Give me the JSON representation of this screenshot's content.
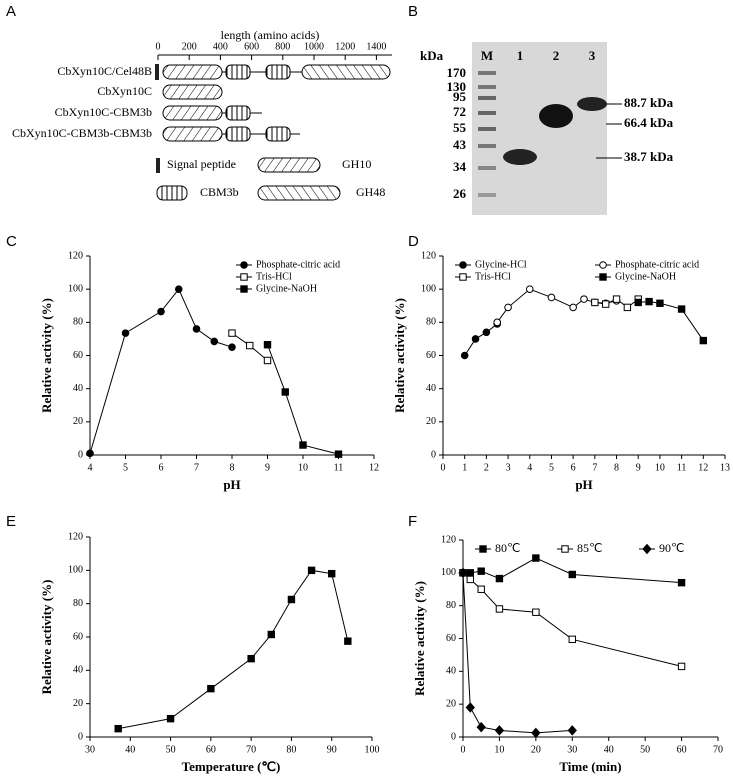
{
  "diagram": {
    "panel_label": "A",
    "axis_title": "length (amino acids)",
    "xlim": [
      0,
      1500
    ],
    "xticks": [
      0,
      200,
      400,
      600,
      800,
      1000,
      1200,
      1400
    ],
    "constructs": [
      "CbXyn10C/Cel48B",
      "CbXyn10C",
      "CbXyn10C-CBM3b",
      "CbXyn10C-CBM3b-CBM3b"
    ],
    "legend": [
      "Signal peptide",
      "GH10",
      "CBM3b",
      "GH48"
    ]
  },
  "gel": {
    "panel_label": "B",
    "unit": "kDa",
    "lanes": [
      "M",
      "1",
      "2",
      "3"
    ],
    "markers": [
      "170",
      "130",
      "95",
      "72",
      "55",
      "43",
      "34",
      "26"
    ],
    "annotations": [
      "88.7 kDa",
      "66.4 kDa",
      "38.7 kDa"
    ]
  },
  "chart_data": [
    {
      "type": "line",
      "panel_label": "C",
      "xlabel": "pH",
      "ylabel": "Relative activity (%)",
      "xlim": [
        4,
        12
      ],
      "xticks": [
        4,
        5,
        6,
        7,
        8,
        9,
        10,
        11,
        12
      ],
      "ylim": [
        0,
        120
      ],
      "yticks": [
        0,
        20,
        40,
        60,
        80,
        100,
        120
      ],
      "legend": "upper right",
      "series": [
        {
          "name": "Phosphate-citric acid",
          "color": "#000000",
          "marker": "circle-filled",
          "x": [
            4,
            5,
            6,
            6.5,
            7,
            7.5,
            8
          ],
          "values": [
            1,
            73.5,
            86.5,
            100,
            76,
            68.5,
            65
          ]
        },
        {
          "name": "Tris-HCl",
          "color": "#000000",
          "marker": "square-open",
          "x": [
            8,
            8.5,
            9
          ],
          "values": [
            73.5,
            66,
            57
          ]
        },
        {
          "name": "Glycine-NaOH",
          "color": "#000000",
          "marker": "square-filled",
          "x": [
            9,
            9.5,
            10,
            11
          ],
          "values": [
            66.5,
            38,
            6,
            0.5
          ]
        }
      ]
    },
    {
      "type": "line",
      "panel_label": "D",
      "xlabel": "pH",
      "ylabel": "Relative activity (%)",
      "xlim": [
        0,
        13
      ],
      "xticks": [
        0,
        1,
        2,
        3,
        4,
        5,
        6,
        7,
        8,
        9,
        10,
        11,
        12,
        13
      ],
      "ylim": [
        0,
        120
      ],
      "yticks": [
        0,
        20,
        40,
        60,
        80,
        100,
        120
      ],
      "legend": "top",
      "series": [
        {
          "name": "Glycine-HCl",
          "color": "#000000",
          "marker": "circle-filled",
          "x": [
            1,
            1.5,
            2,
            2.5
          ],
          "values": [
            60,
            70,
            74,
            79
          ]
        },
        {
          "name": "Phosphate-citric acid",
          "color": "#000000",
          "marker": "circle-open",
          "x": [
            2.5,
            3,
            4,
            5,
            6,
            6.5,
            7,
            7.5,
            8
          ],
          "values": [
            80,
            89,
            100,
            95,
            89,
            94,
            92,
            91.5,
            93
          ]
        },
        {
          "name": "Tris-HCl",
          "color": "#000000",
          "marker": "square-open",
          "x": [
            7,
            7.5,
            8,
            8.5,
            9
          ],
          "values": [
            92,
            91,
            94,
            89,
            94
          ]
        },
        {
          "name": "Glycine-NaOH",
          "color": "#000000",
          "marker": "square-filled",
          "x": [
            9,
            9.5,
            10,
            11,
            12
          ],
          "values": [
            92,
            92.5,
            91.5,
            88,
            69
          ]
        }
      ]
    },
    {
      "type": "line",
      "panel_label": "E",
      "xlabel": "Temperature (℃)",
      "ylabel": "Relative activity (%)",
      "xlim": [
        30,
        100
      ],
      "xticks": [
        30,
        40,
        50,
        60,
        70,
        80,
        90,
        100
      ],
      "ylim": [
        0,
        120
      ],
      "yticks": [
        0,
        20,
        40,
        60,
        80,
        100,
        120
      ],
      "series": [
        {
          "color": "#000000",
          "marker": "square-filled",
          "x": [
            37,
            50,
            60,
            70,
            75,
            80,
            85,
            90,
            94
          ],
          "values": [
            5,
            11,
            29,
            47,
            61.5,
            82.5,
            100,
            98,
            57.5
          ]
        }
      ]
    },
    {
      "type": "line",
      "panel_label": "F",
      "xlabel": "Time (min)",
      "ylabel": "Relative activity (%)",
      "xlim": [
        0,
        70
      ],
      "xticks": [
        0,
        10,
        20,
        30,
        40,
        50,
        60,
        70
      ],
      "ylim": [
        0,
        120
      ],
      "yticks": [
        0,
        20,
        40,
        60,
        80,
        100,
        120
      ],
      "legend": "top",
      "series": [
        {
          "name": "80℃",
          "color": "#000000",
          "marker": "square-filled",
          "x": [
            0,
            2,
            5,
            10,
            20,
            30,
            60
          ],
          "values": [
            100,
            100,
            101,
            96.5,
            109,
            99,
            94
          ]
        },
        {
          "name": "85℃",
          "color": "#000000",
          "marker": "square-open",
          "x": [
            0,
            2,
            5,
            10,
            20,
            30,
            60
          ],
          "values": [
            100,
            96,
            90,
            78,
            76,
            59.5,
            43
          ]
        },
        {
          "name": "90℃",
          "color": "#000000",
          "marker": "diamond-filled",
          "x": [
            0,
            2,
            5,
            10,
            20,
            30
          ],
          "values": [
            100,
            18,
            6,
            4,
            2.5,
            4
          ]
        }
      ]
    }
  ]
}
